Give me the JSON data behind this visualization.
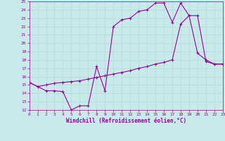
{
  "xlabel": "Windchill (Refroidissement éolien,°C)",
  "bg_color": "#c8eaea",
  "line_color": "#990099",
  "grid_color": "#b8d8d8",
  "xlim": [
    0,
    23
  ],
  "ylim": [
    12,
    25
  ],
  "xticks": [
    0,
    1,
    2,
    3,
    4,
    5,
    6,
    7,
    8,
    9,
    10,
    11,
    12,
    13,
    14,
    15,
    16,
    17,
    18,
    19,
    20,
    21,
    22,
    23
  ],
  "yticks": [
    12,
    13,
    14,
    15,
    16,
    17,
    18,
    19,
    20,
    21,
    22,
    23,
    24,
    25
  ],
  "curve1_x": [
    0,
    1,
    2,
    3,
    4,
    5,
    6,
    7,
    8,
    9,
    10,
    11,
    12,
    13,
    14,
    15,
    16,
    17,
    18,
    19,
    20,
    21,
    22,
    23
  ],
  "curve1_y": [
    15.3,
    14.8,
    14.3,
    14.3,
    14.2,
    12.0,
    12.5,
    12.5,
    17.2,
    14.3,
    22.0,
    22.8,
    23.0,
    23.8,
    24.0,
    24.8,
    24.8,
    22.5,
    24.8,
    23.3,
    18.8,
    18.0,
    17.5,
    17.5
  ],
  "curve2_x": [
    0,
    1,
    2,
    3,
    4,
    5,
    6,
    7,
    8,
    9,
    10,
    11,
    12,
    13,
    14,
    15,
    16,
    17,
    18,
    19,
    20,
    21,
    22,
    23
  ],
  "curve2_y": [
    15.3,
    14.8,
    15.0,
    15.2,
    15.3,
    15.4,
    15.5,
    15.7,
    15.9,
    16.1,
    16.3,
    16.5,
    16.7,
    17.0,
    17.2,
    17.5,
    17.7,
    18.0,
    22.3,
    23.3,
    23.3,
    17.8,
    17.5,
    17.5
  ]
}
